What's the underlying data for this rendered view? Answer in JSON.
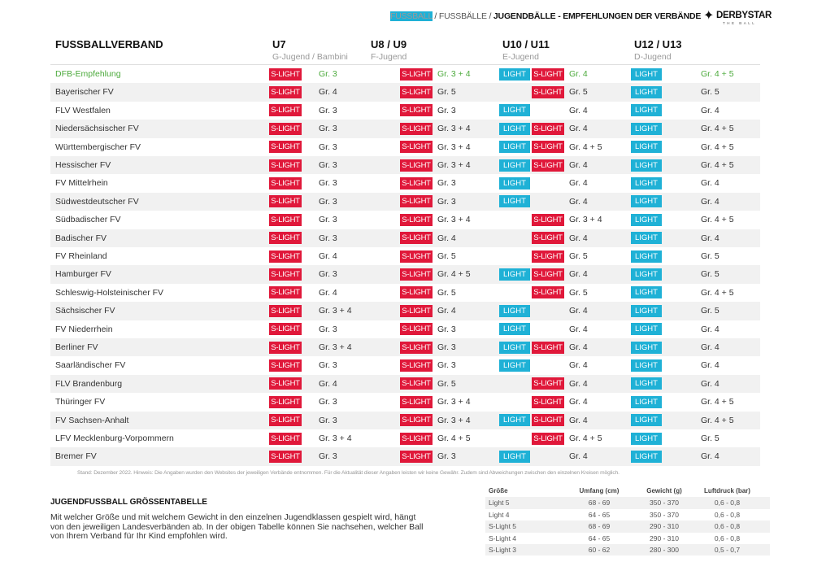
{
  "header": {
    "breadcrumb": [
      {
        "text": "FUSSBALL",
        "style": "light"
      },
      {
        "text": " / ",
        "style": "sep"
      },
      {
        "text": "FUSSBÄLLE",
        "style": "mid"
      },
      {
        "text": " / ",
        "style": "sep"
      },
      {
        "text": "JUGENDBÄLLE - EMPFEHLUNGEN DER VERBÄNDE",
        "style": "bold"
      }
    ],
    "logo": {
      "brand": "DERBYSTAR",
      "tagline": "THE BALL",
      "icon": "star-icon"
    }
  },
  "table": {
    "column_headers": [
      {
        "title": "FUSSBALLVERBAND",
        "subtitle": ""
      },
      {
        "title": "U7",
        "subtitle": "G-Jugend / Bambini"
      },
      {
        "title": "U8 / U9",
        "subtitle": "F-Jugend"
      },
      {
        "title": "U10 / U11",
        "subtitle": "E-Jugend"
      },
      {
        "title": "U12 / U13",
        "subtitle": "D-Jugend"
      }
    ],
    "badge_labels": {
      "slight": "S-LIGHT",
      "light": "LIGHT"
    },
    "colors": {
      "slight": "#e0183a",
      "light": "#1fb1d6",
      "dfb": "#4caa3c"
    },
    "rows": [
      {
        "name": "DFB-Empfehlung",
        "highlight": true,
        "u7": {
          "light": false,
          "slight": true,
          "size": "Gr. 3"
        },
        "u9": {
          "light": false,
          "slight": true,
          "size": "Gr. 3 + 4"
        },
        "u11": {
          "light": true,
          "slight": true,
          "size": "Gr. 4"
        },
        "u13": {
          "light": true,
          "slight": false,
          "size": "Gr. 4 + 5"
        }
      },
      {
        "name": "Bayerischer FV",
        "u7": {
          "light": false,
          "slight": true,
          "size": "Gr. 4"
        },
        "u9": {
          "light": false,
          "slight": true,
          "size": "Gr. 5"
        },
        "u11": {
          "light": false,
          "slight": true,
          "size": "Gr. 5"
        },
        "u13": {
          "light": true,
          "slight": false,
          "size": "Gr. 5"
        }
      },
      {
        "name": "FLV Westfalen",
        "u7": {
          "light": false,
          "slight": true,
          "size": "Gr. 3"
        },
        "u9": {
          "light": false,
          "slight": true,
          "size": "Gr. 3"
        },
        "u11": {
          "light": true,
          "slight": false,
          "size": "Gr. 4"
        },
        "u13": {
          "light": true,
          "slight": false,
          "size": "Gr. 4"
        }
      },
      {
        "name": "Niedersächsischer FV",
        "u7": {
          "light": false,
          "slight": true,
          "size": "Gr. 3"
        },
        "u9": {
          "light": false,
          "slight": true,
          "size": "Gr. 3 + 4"
        },
        "u11": {
          "light": true,
          "slight": true,
          "size": "Gr. 4"
        },
        "u13": {
          "light": true,
          "slight": false,
          "size": "Gr. 4 + 5"
        }
      },
      {
        "name": "Württembergischer FV",
        "u7": {
          "light": false,
          "slight": true,
          "size": "Gr. 3"
        },
        "u9": {
          "light": false,
          "slight": true,
          "size": "Gr. 3 + 4"
        },
        "u11": {
          "light": true,
          "slight": true,
          "size": "Gr. 4 + 5"
        },
        "u13": {
          "light": true,
          "slight": false,
          "size": "Gr. 4 + 5"
        }
      },
      {
        "name": "Hessischer FV",
        "u7": {
          "light": false,
          "slight": true,
          "size": "Gr. 3"
        },
        "u9": {
          "light": false,
          "slight": true,
          "size": "Gr. 3 + 4"
        },
        "u11": {
          "light": true,
          "slight": true,
          "size": "Gr. 4"
        },
        "u13": {
          "light": true,
          "slight": false,
          "size": "Gr. 4 + 5"
        }
      },
      {
        "name": "FV Mittelrhein",
        "u7": {
          "light": false,
          "slight": true,
          "size": "Gr. 3"
        },
        "u9": {
          "light": false,
          "slight": true,
          "size": "Gr. 3"
        },
        "u11": {
          "light": true,
          "slight": false,
          "size": "Gr. 4"
        },
        "u13": {
          "light": true,
          "slight": false,
          "size": "Gr. 4"
        }
      },
      {
        "name": "Südwestdeutscher FV",
        "u7": {
          "light": false,
          "slight": true,
          "size": "Gr. 3"
        },
        "u9": {
          "light": false,
          "slight": true,
          "size": "Gr. 3"
        },
        "u11": {
          "light": true,
          "slight": false,
          "size": "Gr. 4"
        },
        "u13": {
          "light": true,
          "slight": false,
          "size": "Gr. 4"
        }
      },
      {
        "name": "Südbadischer FV",
        "u7": {
          "light": false,
          "slight": true,
          "size": "Gr. 3"
        },
        "u9": {
          "light": false,
          "slight": true,
          "size": "Gr. 3 + 4"
        },
        "u11": {
          "light": false,
          "slight": true,
          "size": "Gr. 3 + 4"
        },
        "u13": {
          "light": true,
          "slight": false,
          "size": "Gr. 4 + 5"
        }
      },
      {
        "name": "Badischer FV",
        "u7": {
          "light": false,
          "slight": true,
          "size": "Gr. 3"
        },
        "u9": {
          "light": false,
          "slight": true,
          "size": "Gr. 4"
        },
        "u11": {
          "light": false,
          "slight": true,
          "size": "Gr. 4"
        },
        "u13": {
          "light": true,
          "slight": false,
          "size": "Gr. 4"
        }
      },
      {
        "name": "FV Rheinland",
        "u7": {
          "light": false,
          "slight": true,
          "size": "Gr. 4"
        },
        "u9": {
          "light": false,
          "slight": true,
          "size": "Gr. 5"
        },
        "u11": {
          "light": false,
          "slight": true,
          "size": "Gr. 5"
        },
        "u13": {
          "light": true,
          "slight": false,
          "size": "Gr. 5"
        }
      },
      {
        "name": "Hamburger FV",
        "u7": {
          "light": false,
          "slight": true,
          "size": "Gr. 3"
        },
        "u9": {
          "light": false,
          "slight": true,
          "size": "Gr. 4 + 5"
        },
        "u11": {
          "light": true,
          "slight": true,
          "size": "Gr. 4"
        },
        "u13": {
          "light": true,
          "slight": false,
          "size": "Gr. 5"
        }
      },
      {
        "name": "Schleswig-Holsteinischer FV",
        "u7": {
          "light": false,
          "slight": true,
          "size": "Gr. 4"
        },
        "u9": {
          "light": false,
          "slight": true,
          "size": "Gr. 5"
        },
        "u11": {
          "light": false,
          "slight": true,
          "size": "Gr. 5"
        },
        "u13": {
          "light": true,
          "slight": false,
          "size": "Gr. 4 + 5"
        }
      },
      {
        "name": "Sächsischer FV",
        "u7": {
          "light": false,
          "slight": true,
          "size": "Gr. 3 + 4"
        },
        "u9": {
          "light": false,
          "slight": true,
          "size": "Gr. 4"
        },
        "u11": {
          "light": true,
          "slight": false,
          "size": "Gr. 4"
        },
        "u13": {
          "light": true,
          "slight": false,
          "size": "Gr. 5"
        }
      },
      {
        "name": "FV Niederrhein",
        "u7": {
          "light": false,
          "slight": true,
          "size": "Gr. 3"
        },
        "u9": {
          "light": false,
          "slight": true,
          "size": "Gr. 3"
        },
        "u11": {
          "light": true,
          "slight": false,
          "size": "Gr. 4"
        },
        "u13": {
          "light": true,
          "slight": false,
          "size": "Gr. 4"
        }
      },
      {
        "name": "Berliner FV",
        "u7": {
          "light": false,
          "slight": true,
          "size": "Gr. 3 + 4"
        },
        "u9": {
          "light": false,
          "slight": true,
          "size": "Gr. 3"
        },
        "u11": {
          "light": true,
          "slight": true,
          "size": "Gr. 4"
        },
        "u13": {
          "light": true,
          "slight": false,
          "size": "Gr. 4"
        }
      },
      {
        "name": "Saarländischer FV",
        "u7": {
          "light": false,
          "slight": true,
          "size": "Gr. 3"
        },
        "u9": {
          "light": false,
          "slight": true,
          "size": "Gr. 3"
        },
        "u11": {
          "light": true,
          "slight": false,
          "size": "Gr. 4"
        },
        "u13": {
          "light": true,
          "slight": false,
          "size": "Gr. 4"
        }
      },
      {
        "name": "FLV Brandenburg",
        "u7": {
          "light": false,
          "slight": true,
          "size": "Gr. 4"
        },
        "u9": {
          "light": false,
          "slight": true,
          "size": "Gr. 5"
        },
        "u11": {
          "light": false,
          "slight": true,
          "size": "Gr. 4"
        },
        "u13": {
          "light": true,
          "slight": false,
          "size": "Gr. 4"
        }
      },
      {
        "name": "Thüringer FV",
        "u7": {
          "light": false,
          "slight": true,
          "size": "Gr. 3"
        },
        "u9": {
          "light": false,
          "slight": true,
          "size": "Gr. 3 + 4"
        },
        "u11": {
          "light": false,
          "slight": true,
          "size": "Gr. 4"
        },
        "u13": {
          "light": true,
          "slight": false,
          "size": "Gr. 4 + 5"
        }
      },
      {
        "name": "FV Sachsen-Anhalt",
        "u7": {
          "light": false,
          "slight": true,
          "size": "Gr. 3"
        },
        "u9": {
          "light": false,
          "slight": true,
          "size": "Gr. 3 + 4"
        },
        "u11": {
          "light": true,
          "slight": true,
          "size": "Gr. 4"
        },
        "u13": {
          "light": true,
          "slight": false,
          "size": "Gr. 4 + 5"
        }
      },
      {
        "name": "LFV Mecklenburg-Vorpommern",
        "u7": {
          "light": false,
          "slight": true,
          "size": "Gr. 3 + 4"
        },
        "u9": {
          "light": false,
          "slight": true,
          "size": "Gr. 4 + 5"
        },
        "u11": {
          "light": false,
          "slight": true,
          "size": "Gr. 4 + 5"
        },
        "u13": {
          "light": true,
          "slight": false,
          "size": "Gr. 5"
        }
      },
      {
        "name": "Bremer FV",
        "u7": {
          "light": false,
          "slight": true,
          "size": "Gr. 3"
        },
        "u9": {
          "light": false,
          "slight": true,
          "size": "Gr. 3"
        },
        "u11": {
          "light": true,
          "slight": false,
          "size": "Gr. 4"
        },
        "u13": {
          "light": true,
          "slight": false,
          "size": "Gr. 4"
        }
      }
    ],
    "note": "Stand: Dezember 2022. Hinweis: Die Angaben wurden den Websites der jeweiligen Verbände entnommen. Für die Aktualität dieser Angaben leisten wir keine Gewähr. Zudem sind Abweichungen zwischen den einzelnen Kreisen möglich."
  },
  "size_section": {
    "title": "JUGENDFUSSBALL GRÖSSENTABELLE",
    "description": "Mit welcher Größe und mit welchem Gewicht in den einzelnen Jugendklassen gespielt wird, hängt von den jeweiligen Landesverbänden ab. In der obigen Tabelle können Sie nachsehen, welcher Ball von Ihrem Verband für Ihr Kind empfohlen wird.",
    "table": {
      "headers": [
        "Größe",
        "Umfang (cm)",
        "Gewicht (g)",
        "Luftdruck (bar)"
      ],
      "rows": [
        [
          "Light 5",
          "68 - 69",
          "350 - 370",
          "0,6 - 0,8"
        ],
        [
          "Light 4",
          "64 - 65",
          "350 - 370",
          "0,6 - 0,8"
        ],
        [
          "S-Light 5",
          "68 - 69",
          "290 - 310",
          "0,6 - 0,8"
        ],
        [
          "S-Light 4",
          "64 - 65",
          "290 - 310",
          "0,6 - 0,8"
        ],
        [
          "S-Light 3",
          "60 - 62",
          "280 - 300",
          "0,5 - 0,7"
        ]
      ]
    }
  }
}
